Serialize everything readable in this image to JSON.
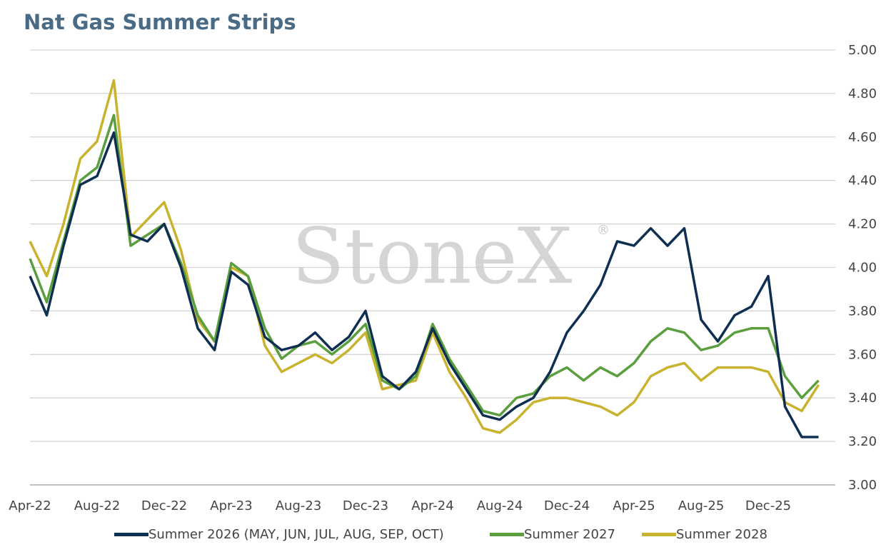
{
  "chart_data": {
    "type": "line",
    "title": "Nat Gas Summer Strips",
    "watermark": "StoneX",
    "watermark_mark": "®",
    "y_axis_position": "right",
    "ylim": [
      3.0,
      5.0
    ],
    "yticks": [
      "3.00",
      "3.20",
      "3.40",
      "3.60",
      "3.80",
      "4.00",
      "4.20",
      "4.40",
      "4.60",
      "4.80",
      "5.00"
    ],
    "xlim": [
      "2022-04",
      "2026-04"
    ],
    "xticks": [
      "Apr-22",
      "Aug-22",
      "Dec-22",
      "Apr-23",
      "Aug-23",
      "Dec-23",
      "Apr-24",
      "Aug-24",
      "Dec-24",
      "Apr-25",
      "Aug-25",
      "Dec-25"
    ],
    "grid": "horizontal",
    "legend_position": "bottom",
    "x": [
      "2022-04",
      "2022-05",
      "2022-06",
      "2022-07",
      "2022-08",
      "2022-09",
      "2022-10",
      "2022-11",
      "2022-12",
      "2023-01",
      "2023-02",
      "2023-03",
      "2023-04",
      "2023-05",
      "2023-06",
      "2023-07",
      "2023-08",
      "2023-09",
      "2023-10",
      "2023-11",
      "2023-12",
      "2024-01",
      "2024-02",
      "2024-03",
      "2024-04",
      "2024-05",
      "2024-06",
      "2024-07",
      "2024-08",
      "2024-09",
      "2024-10",
      "2024-11",
      "2024-12",
      "2025-01",
      "2025-02",
      "2025-03",
      "2025-04",
      "2025-05",
      "2025-06",
      "2025-07",
      "2025-08",
      "2025-09",
      "2025-10",
      "2025-11",
      "2025-12",
      "2026-01",
      "2026-02",
      "2026-03"
    ],
    "series": [
      {
        "name": "Summer 2026 (MAY, JUN, JUL, AUG, SEP, OCT)",
        "color": "#0e2f52",
        "values": [
          3.96,
          3.78,
          4.1,
          4.38,
          4.42,
          4.62,
          4.15,
          4.12,
          4.2,
          4.0,
          3.72,
          3.62,
          3.98,
          3.92,
          3.68,
          3.62,
          3.64,
          3.7,
          3.62,
          3.68,
          3.8,
          3.5,
          3.44,
          3.52,
          3.72,
          3.56,
          3.44,
          3.32,
          3.3,
          3.36,
          3.4,
          3.52,
          3.7,
          3.8,
          3.92,
          4.12,
          4.1,
          4.18,
          4.1,
          4.18,
          3.76,
          3.66,
          3.78,
          3.82,
          3.96,
          3.36,
          3.22,
          3.22
        ]
      },
      {
        "name": "Summer 2027",
        "color": "#5a9e3e",
        "values": [
          4.04,
          3.84,
          4.12,
          4.4,
          4.46,
          4.7,
          4.1,
          4.15,
          4.2,
          4.02,
          3.78,
          3.66,
          4.02,
          3.96,
          3.72,
          3.58,
          3.64,
          3.66,
          3.6,
          3.66,
          3.74,
          3.48,
          3.44,
          3.5,
          3.74,
          3.58,
          3.46,
          3.34,
          3.32,
          3.4,
          3.42,
          3.5,
          3.54,
          3.48,
          3.54,
          3.5,
          3.56,
          3.66,
          3.72,
          3.7,
          3.62,
          3.64,
          3.7,
          3.72,
          3.72,
          3.5,
          3.4,
          3.48
        ]
      },
      {
        "name": "Summer 2028",
        "color": "#c8b22e",
        "values": [
          4.12,
          3.96,
          4.2,
          4.5,
          4.58,
          4.86,
          4.14,
          4.22,
          4.3,
          4.08,
          3.76,
          3.66,
          4.0,
          3.96,
          3.64,
          3.52,
          3.56,
          3.6,
          3.56,
          3.62,
          3.7,
          3.44,
          3.46,
          3.48,
          3.7,
          3.52,
          3.4,
          3.26,
          3.24,
          3.3,
          3.38,
          3.4,
          3.4,
          3.38,
          3.36,
          3.32,
          3.38,
          3.5,
          3.54,
          3.56,
          3.48,
          3.54,
          3.54,
          3.54,
          3.52,
          3.38,
          3.34,
          3.46
        ]
      }
    ]
  }
}
